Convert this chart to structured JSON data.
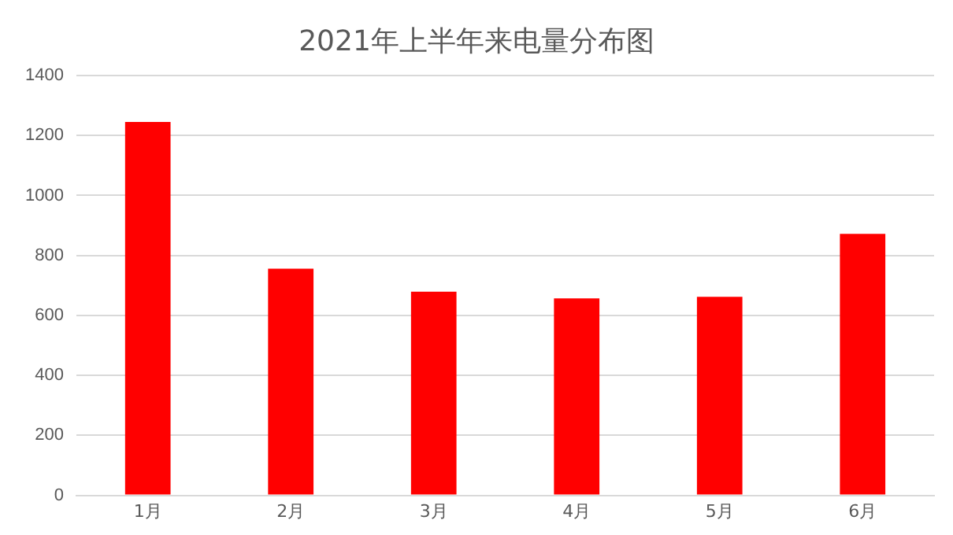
{
  "chart_data": {
    "type": "bar",
    "title": "2021年上半年来电量分布图",
    "categories": [
      "1月",
      "2月",
      "3月",
      "4月",
      "5月",
      "6月"
    ],
    "values": [
      1245,
      756,
      679,
      657,
      662,
      872
    ],
    "color": "#ff0000",
    "ylim": [
      0,
      1400
    ],
    "yticks": [
      0,
      200,
      400,
      600,
      800,
      1000,
      1200,
      1400
    ],
    "grid": "y"
  }
}
